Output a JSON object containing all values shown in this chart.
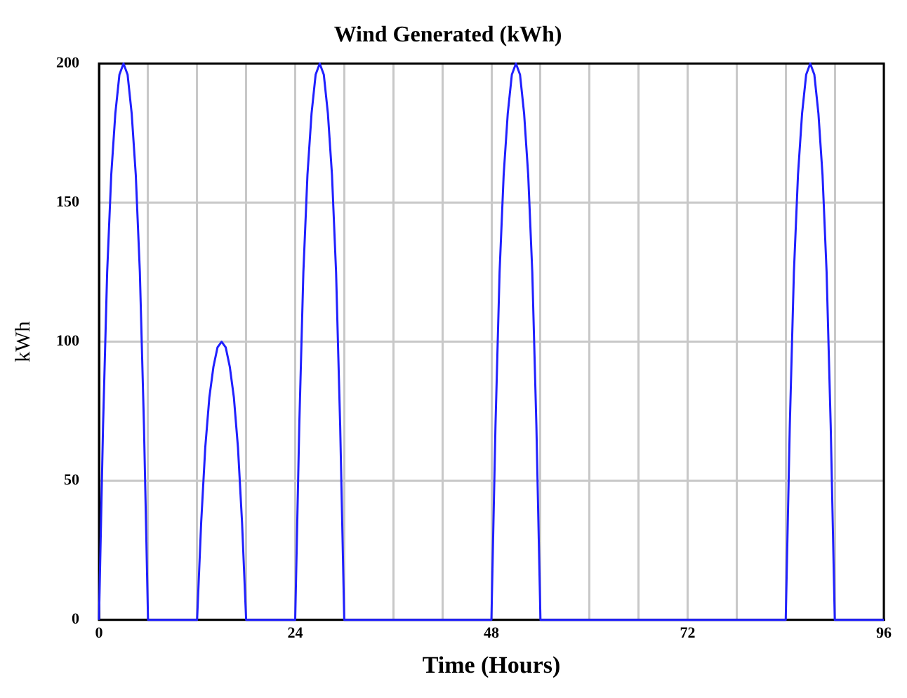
{
  "chart_data": {
    "type": "line",
    "title": "Wind Generated (kWh)",
    "xlabel": "Time (Hours)",
    "ylabel": "kWh",
    "x": [
      0,
      0.5,
      1,
      1.5,
      2,
      2.5,
      3,
      3.5,
      4,
      4.5,
      5,
      5.5,
      6,
      12,
      12.5,
      13,
      13.5,
      14,
      14.5,
      15,
      15.5,
      16,
      16.5,
      17,
      17.5,
      18,
      24,
      24.5,
      25,
      25.5,
      26,
      26.5,
      27,
      27.5,
      28,
      28.5,
      29,
      29.5,
      30,
      48,
      48.5,
      49,
      49.5,
      50,
      50.5,
      51,
      51.5,
      52,
      52.5,
      53,
      53.5,
      54,
      84,
      84.5,
      85,
      85.5,
      86,
      86.5,
      87,
      87.5,
      88,
      88.5,
      89,
      89.5,
      90,
      96
    ],
    "series": [
      {
        "color": "#2020ff",
        "values": [
          0,
          70,
          125,
          160,
          182,
          196,
          200,
          196,
          182,
          160,
          125,
          70,
          0,
          0,
          35,
          62,
          80,
          91,
          98,
          100,
          98,
          91,
          80,
          62,
          35,
          0,
          0,
          70,
          125,
          160,
          182,
          196,
          200,
          196,
          182,
          160,
          125,
          70,
          0,
          0,
          70,
          125,
          160,
          182,
          196,
          200,
          196,
          182,
          160,
          125,
          70,
          0,
          0,
          70,
          125,
          160,
          182,
          196,
          200,
          196,
          182,
          160,
          125,
          70,
          0,
          0
        ]
      }
    ],
    "xlim": [
      0,
      96
    ],
    "xticks": [
      0,
      {
        "value": 6,
        "label": null
      },
      {
        "value": 12,
        "label": null
      },
      {
        "value": 18,
        "label": null
      },
      24,
      {
        "value": 30,
        "label": null
      },
      {
        "value": 36,
        "label": null
      },
      {
        "value": 42,
        "label": null
      },
      48,
      {
        "value": 54,
        "label": null
      },
      {
        "value": 60,
        "label": null
      },
      {
        "value": 66,
        "label": null
      },
      72,
      {
        "value": 78,
        "label": null
      },
      {
        "value": 84,
        "label": null
      },
      {
        "value": 90,
        "label": null
      },
      96
    ],
    "ylim": [
      0,
      200
    ],
    "yticks": [
      0,
      50,
      100,
      150,
      200
    ],
    "grid": true,
    "marker": "none",
    "line_style": "solid"
  }
}
